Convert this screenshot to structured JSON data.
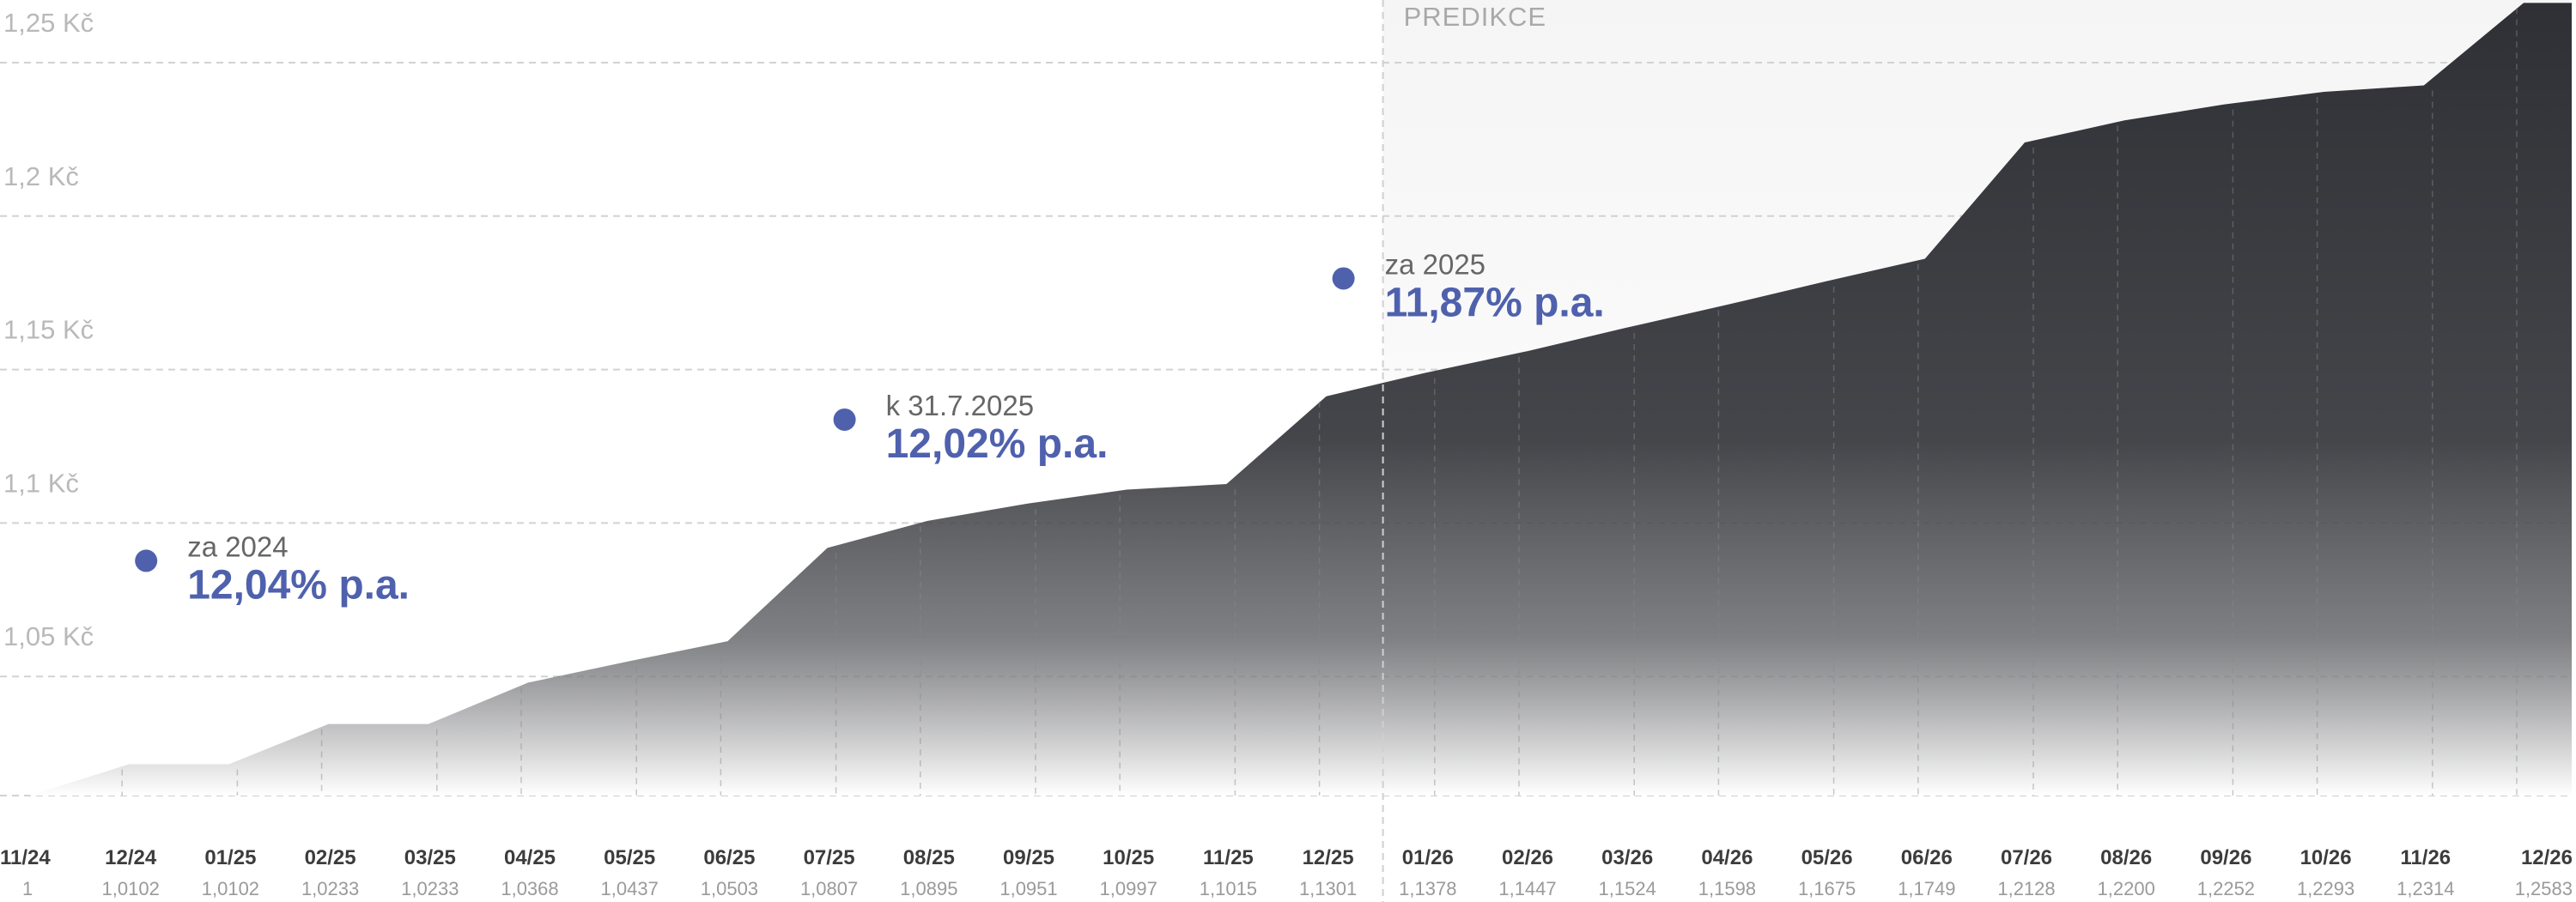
{
  "chart_data": {
    "type": "area",
    "title": "",
    "xlabel": "",
    "ylabel": "",
    "ylim": [
      1.0,
      1.26
    ],
    "yticks": [
      1.05,
      1.1,
      1.15,
      1.2,
      1.25
    ],
    "ytick_labels": [
      "1,05 Kč",
      "1,1 Kč",
      "1,15 Kč",
      "1,2 Kč",
      "1,25 Kč"
    ],
    "categories": [
      "11/24",
      "12/24",
      "01/25",
      "02/25",
      "03/25",
      "04/25",
      "05/25",
      "06/25",
      "07/25",
      "08/25",
      "09/25",
      "10/25",
      "11/25",
      "12/25",
      "01/26",
      "02/26",
      "03/26",
      "04/26",
      "05/26",
      "06/26",
      "07/26",
      "08/26",
      "09/26",
      "10/26",
      "11/26",
      "12/26"
    ],
    "value_labels": [
      "1",
      "1,0102",
      "1,0102",
      "1,0233",
      "1,0233",
      "1,0368",
      "1,0437",
      "1,0503",
      "1,0807",
      "1,0895",
      "1,0951",
      "1,0997",
      "1,1015",
      "1,1301",
      "1,1378",
      "1,1447",
      "1,1524",
      "1,1598",
      "1,1675",
      "1,1749",
      "1,2128",
      "1,2200",
      "1,2252",
      "1,2293",
      "1,2314",
      "1,2583"
    ],
    "values": [
      1,
      1.0102,
      1.0102,
      1.0233,
      1.0233,
      1.0368,
      1.0437,
      1.0503,
      1.0807,
      1.0895,
      1.0951,
      1.0997,
      1.1015,
      1.1301,
      1.1378,
      1.1447,
      1.1524,
      1.1598,
      1.1675,
      1.1749,
      1.2128,
      1.22,
      1.2252,
      1.2293,
      1.2314,
      1.2583
    ],
    "grid": true,
    "prediction": {
      "label": "PREDIKCE",
      "start_category": "12/25"
    },
    "colors": {
      "area": "#3a3b40",
      "marker": "#4f61ad",
      "grid": "#d2d2d2",
      "prediction_band": "#efefef"
    },
    "annotations": [
      {
        "category": "12/24",
        "marker_value": 1.0765,
        "small": "za 2024",
        "big": "12,04% p.a."
      },
      {
        "category": "07/25",
        "marker_value": 1.1225,
        "small": "k 31.7.2025",
        "big": "12,02% p.a."
      },
      {
        "category": "12/25",
        "marker_value": 1.1685,
        "small": "za 2025",
        "big": "11,87% p.a."
      }
    ]
  }
}
